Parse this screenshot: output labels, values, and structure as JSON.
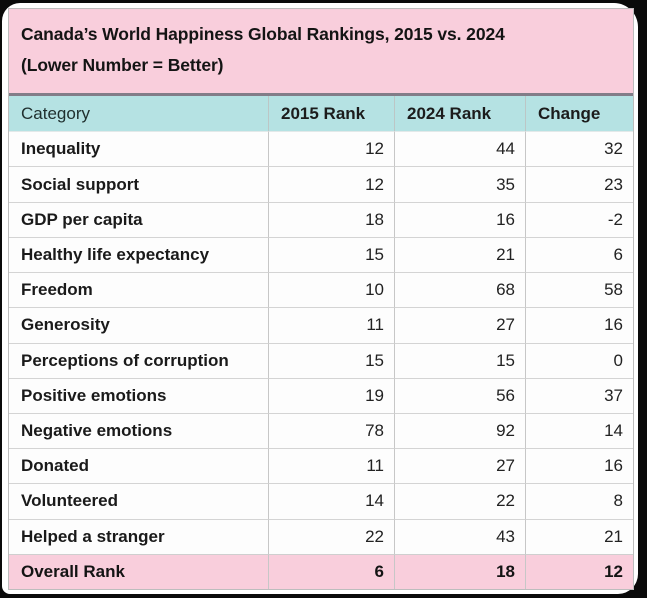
{
  "colors": {
    "title_bg": "#f9cedc",
    "header_bg": "#b5e2e3",
    "footer_bg": "#f9cedc",
    "row_bg": "#fdfdfd",
    "frame_bg": "#0a0a0a",
    "card_bg": "#ffffff",
    "grid_line": "#c7c7c7",
    "title_rule": "#827d88",
    "text": "#141414"
  },
  "chart_data": {
    "type": "table",
    "title": "Canada’s World Happiness Global Rankings, 2015 vs. 2024 (Lower Number = Better)",
    "title_line1": "Canada’s World Happiness Global Rankings, 2015 vs. 2024",
    "title_line2": "(Lower Number = Better)",
    "columns": [
      "Category",
      "2015 Rank",
      "2024 Rank",
      "Change"
    ],
    "rows": [
      {
        "category": "Inequality",
        "rank_2015": "12",
        "rank_2024": "44",
        "change": "32"
      },
      {
        "category": "Social support",
        "rank_2015": "12",
        "rank_2024": "35",
        "change": "23"
      },
      {
        "category": "GDP per capita",
        "rank_2015": "18",
        "rank_2024": "16",
        "change": "-2"
      },
      {
        "category": "Healthy life expectancy",
        "rank_2015": "15",
        "rank_2024": "21",
        "change": "6"
      },
      {
        "category": "Freedom",
        "rank_2015": "10",
        "rank_2024": "68",
        "change": "58"
      },
      {
        "category": "Generosity",
        "rank_2015": "11",
        "rank_2024": "27",
        "change": "16"
      },
      {
        "category": "Perceptions of corruption",
        "rank_2015": "15",
        "rank_2024": "15",
        "change": "0"
      },
      {
        "category": "Positive emotions",
        "rank_2015": "19",
        "rank_2024": "56",
        "change": "37"
      },
      {
        "category": "Negative emotions",
        "rank_2015": "78",
        "rank_2024": "92",
        "change": "14"
      },
      {
        "category": "Donated",
        "rank_2015": "11",
        "rank_2024": "27",
        "change": "16"
      },
      {
        "category": "Volunteered",
        "rank_2015": "14",
        "rank_2024": "22",
        "change": "8"
      },
      {
        "category": "Helped a stranger",
        "rank_2015": "22",
        "rank_2024": "43",
        "change": "21"
      }
    ],
    "footer": {
      "category": "Overall Rank",
      "rank_2015": "6",
      "rank_2024": "18",
      "change": "12"
    }
  }
}
